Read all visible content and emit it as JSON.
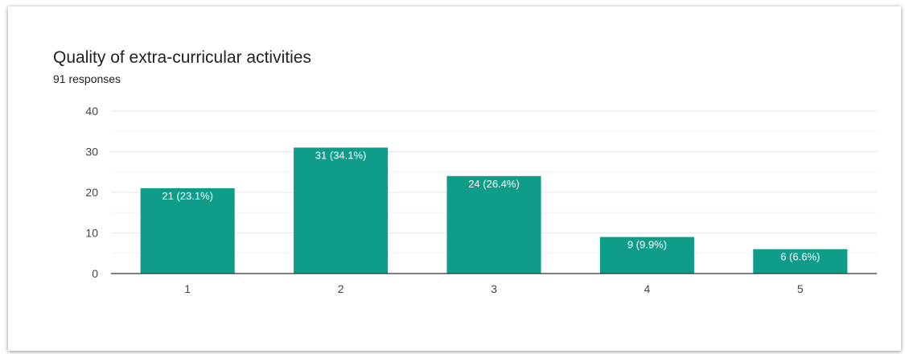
{
  "title": "Quality of extra-curricular activities",
  "subtitle": "91 responses",
  "chart_data": {
    "type": "bar",
    "title": "Quality of extra-curricular activities",
    "subtitle": "91 responses",
    "categories": [
      "1",
      "2",
      "3",
      "4",
      "5"
    ],
    "values": [
      21,
      31,
      24,
      9,
      6
    ],
    "data_labels": [
      "21 (23.1%)",
      "31 (34.1%)",
      "24 (26.4%)",
      "9 (9.9%)",
      "6 (6.6%)"
    ],
    "y_ticks": [
      0,
      10,
      20,
      30,
      40
    ],
    "ylim": [
      0,
      40
    ],
    "grid": true,
    "xlabel": "",
    "ylabel": "",
    "bar_color": "#0f9d8a",
    "grid_color": "#e6e6e6",
    "axis_color": "#333333",
    "label_color": "#ffffff",
    "tick_color": "#444444"
  }
}
